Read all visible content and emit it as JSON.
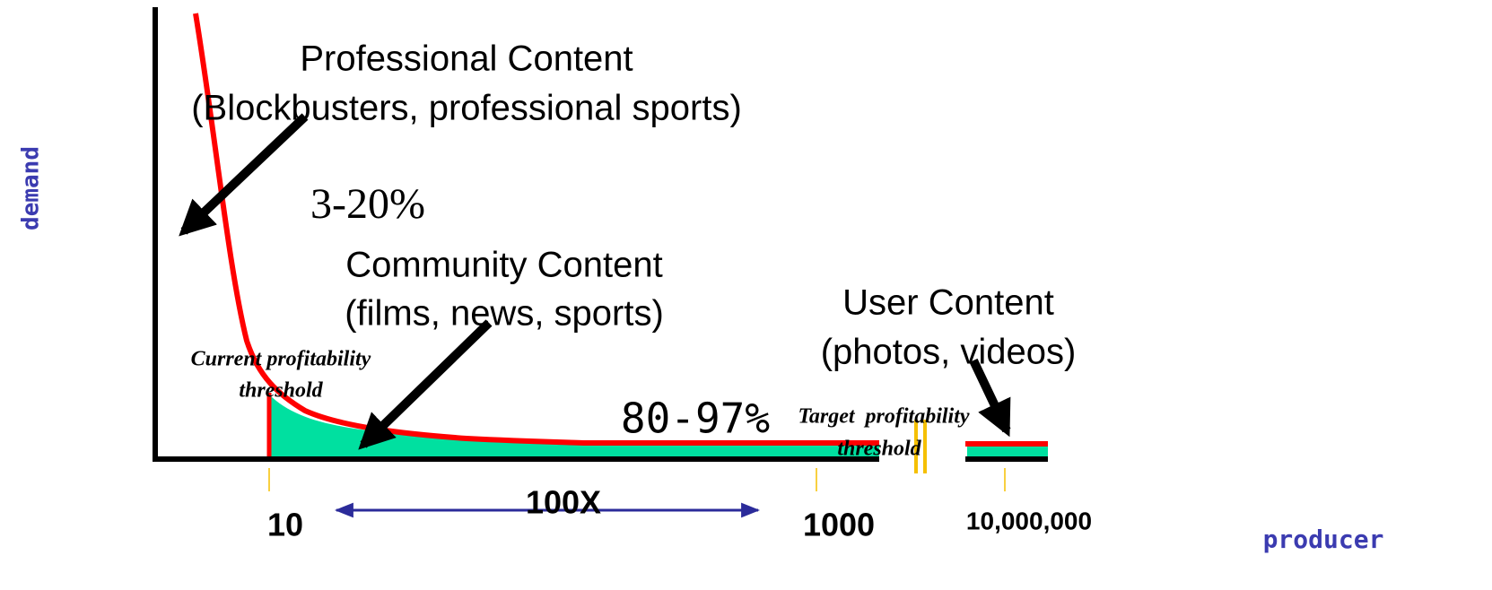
{
  "diagram": {
    "y_axis_label": "demand",
    "x_axis_label": "producer",
    "x_labels": [
      "10",
      "1000",
      "10,000,000"
    ],
    "span_label": "100X",
    "professional": {
      "title": "Professional Content",
      "detail": "(Blockbusters, professional sports)",
      "share": "3-20%"
    },
    "community": {
      "title": "Community Content",
      "detail": "(films, news, sports)",
      "share": "80-97%"
    },
    "user": {
      "title": "User Content",
      "detail": "(photos, videos)"
    },
    "current_threshold": [
      "Current profitability",
      "threshold"
    ],
    "target_threshold": [
      "Target  profitability",
      "threshold"
    ]
  }
}
